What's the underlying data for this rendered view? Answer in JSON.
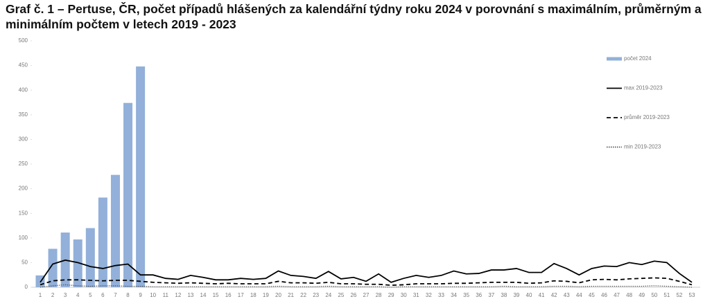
{
  "chart_data": {
    "type": "bar",
    "title": "Graf č. 1 – Pertuse, ČR, počet případů hlášených za kalendářní týdny roku 2024 v porovnání s maximálním, průměrným a minimálním počtem v letech 2019 - 2023",
    "categories": [
      "1",
      "2",
      "3",
      "4",
      "5",
      "6",
      "7",
      "8",
      "9",
      "10",
      "11",
      "12",
      "13",
      "14",
      "15",
      "16",
      "17",
      "18",
      "19",
      "20",
      "21",
      "22",
      "23",
      "24",
      "25",
      "26",
      "27",
      "28",
      "29",
      "30",
      "31",
      "32",
      "33",
      "34",
      "35",
      "36",
      "37",
      "38",
      "39",
      "40",
      "41",
      "42",
      "43",
      "44",
      "45",
      "46",
      "47",
      "48",
      "49",
      "50",
      "51",
      "52",
      "53"
    ],
    "ylim": [
      0,
      500
    ],
    "yticks": [
      0,
      50,
      100,
      150,
      200,
      250,
      300,
      350,
      400,
      450,
      500
    ],
    "series": [
      {
        "name": "počet 2024",
        "type": "bar",
        "color": "#92b0d9",
        "values": [
          24,
          78,
          111,
          97,
          120,
          182,
          228,
          374,
          448,
          null,
          null,
          null,
          null,
          null,
          null,
          null,
          null,
          null,
          null,
          null,
          null,
          null,
          null,
          null,
          null,
          null,
          null,
          null,
          null,
          null,
          null,
          null,
          null,
          null,
          null,
          null,
          null,
          null,
          null,
          null,
          null,
          null,
          null,
          null,
          null,
          null,
          null,
          null,
          null,
          null,
          null,
          null,
          null
        ]
      },
      {
        "name": "max 2019-2023",
        "type": "line",
        "dash": "solid",
        "color": "#000000",
        "values": [
          10,
          47,
          55,
          50,
          42,
          38,
          44,
          47,
          25,
          25,
          18,
          16,
          24,
          20,
          15,
          15,
          18,
          16,
          18,
          33,
          24,
          22,
          18,
          32,
          17,
          20,
          12,
          27,
          10,
          18,
          24,
          20,
          24,
          33,
          27,
          28,
          35,
          35,
          38,
          30,
          30,
          48,
          38,
          25,
          38,
          43,
          42,
          50,
          46,
          53,
          50,
          28,
          10
        ]
      },
      {
        "name": "průměr 2019-2023",
        "type": "line",
        "dash": "dashed",
        "color": "#000000",
        "values": [
          5,
          13,
          15,
          15,
          14,
          13,
          14,
          14,
          12,
          10,
          9,
          8,
          9,
          8,
          7,
          8,
          7,
          7,
          7,
          12,
          9,
          9,
          8,
          10,
          7,
          7,
          6,
          6,
          4,
          5,
          7,
          7,
          7,
          8,
          8,
          9,
          10,
          10,
          10,
          8,
          9,
          13,
          12,
          9,
          15,
          16,
          15,
          17,
          18,
          19,
          18,
          12,
          5
        ]
      },
      {
        "name": "min 2019-2023",
        "type": "line",
        "dash": "dotted",
        "color": "#555555",
        "values": [
          0,
          3,
          5,
          3,
          2,
          3,
          3,
          2,
          2,
          1,
          1,
          1,
          1,
          1,
          1,
          1,
          1,
          1,
          1,
          2,
          1,
          1,
          1,
          2,
          1,
          1,
          1,
          1,
          0,
          1,
          1,
          1,
          1,
          1,
          1,
          1,
          1,
          2,
          1,
          1,
          1,
          2,
          2,
          1,
          2,
          2,
          2,
          2,
          2,
          3,
          2,
          1,
          0
        ]
      }
    ]
  }
}
